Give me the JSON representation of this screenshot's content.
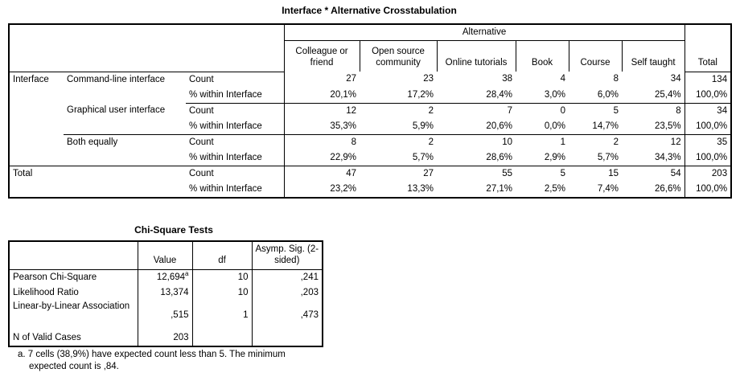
{
  "crosstab": {
    "title": "Interface * Alternative Crosstabulation",
    "col_group": "Alternative",
    "columns": [
      "Colleague or friend",
      "Open source community",
      "Online tutorials",
      "Book",
      "Course",
      "Self taught"
    ],
    "total_label": "Total",
    "row_var": "Interface",
    "rows": [
      {
        "label": "Command-line interface",
        "count": [
          "27",
          "23",
          "38",
          "4",
          "8",
          "34",
          "134"
        ],
        "pct": [
          "20,1%",
          "17,2%",
          "28,4%",
          "3,0%",
          "6,0%",
          "25,4%",
          "100,0%"
        ]
      },
      {
        "label": "Graphical user interface",
        "count": [
          "12",
          "2",
          "7",
          "0",
          "5",
          "8",
          "34"
        ],
        "pct": [
          "35,3%",
          "5,9%",
          "20,6%",
          "0,0%",
          "14,7%",
          "23,5%",
          "100,0%"
        ]
      },
      {
        "label": "Both equally",
        "count": [
          "8",
          "2",
          "10",
          "1",
          "2",
          "12",
          "35"
        ],
        "pct": [
          "22,9%",
          "5,7%",
          "28,6%",
          "2,9%",
          "5,7%",
          "34,3%",
          "100,0%"
        ]
      }
    ],
    "total_row": {
      "label": "Total",
      "count": [
        "47",
        "27",
        "55",
        "5",
        "15",
        "54",
        "203"
      ],
      "pct": [
        "23,2%",
        "13,3%",
        "27,1%",
        "2,5%",
        "7,4%",
        "26,6%",
        "100,0%"
      ]
    },
    "count_label": "Count",
    "pct_label": "% within Interface"
  },
  "chisq": {
    "title": "Chi-Square Tests",
    "headers": [
      "Value",
      "df",
      "Asymp. Sig. (2-sided)"
    ],
    "rows": [
      {
        "label": "Pearson Chi-Square",
        "value": "12,694",
        "sup": "a",
        "df": "10",
        "sig": ",241"
      },
      {
        "label": "Likelihood Ratio",
        "value": "13,374",
        "df": "10",
        "sig": ",203"
      },
      {
        "label": "Linear-by-Linear Association",
        "value": ",515",
        "df": "1",
        "sig": ",473"
      },
      {
        "label": "N of Valid Cases",
        "value": "203",
        "df": "",
        "sig": ""
      }
    ],
    "footnote_line1": "a. 7 cells (38,9%) have expected count less than 5. The minimum",
    "footnote_line2": "expected count is ,84."
  }
}
